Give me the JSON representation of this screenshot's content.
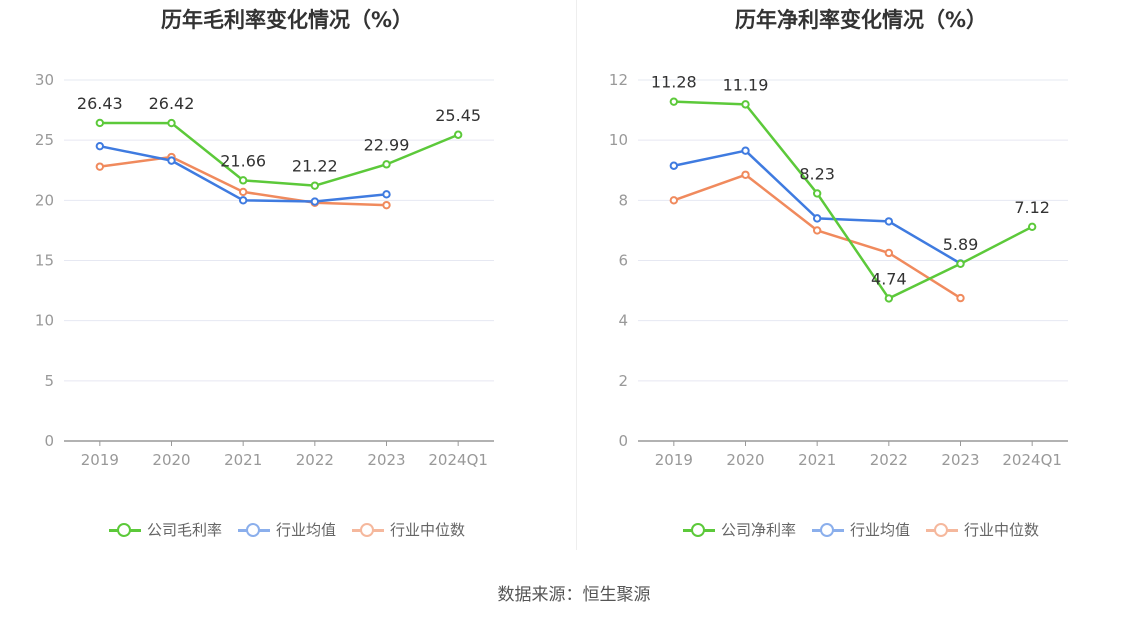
{
  "source_text": "数据来源：恒生聚源",
  "colors": {
    "company": "#5cc93a",
    "average": "#3f7be0",
    "median": "#f08a5d",
    "grid": "#e6e8f2",
    "axis": "#999999"
  },
  "legend": {
    "average": "行业均值",
    "median": "行业中位数"
  },
  "chart_data": [
    {
      "type": "line",
      "title": "历年毛利率变化情况（%）",
      "categories": [
        "2019",
        "2020",
        "2021",
        "2022",
        "2023",
        "2024Q1"
      ],
      "ylim": [
        0,
        30
      ],
      "yticks": [
        0,
        5,
        10,
        15,
        20,
        25,
        30
      ],
      "grid": true,
      "legend_position": "bottom",
      "series": [
        {
          "name": "公司毛利率",
          "key": "company",
          "values": [
            26.43,
            26.42,
            21.66,
            21.22,
            22.99,
            25.45
          ],
          "labels": [
            "26.43",
            "26.42",
            "21.66",
            "21.22",
            "22.99",
            "25.45"
          ]
        },
        {
          "name": "行业均值",
          "key": "average",
          "values": [
            24.5,
            23.3,
            20.0,
            19.9,
            20.5,
            null
          ]
        },
        {
          "name": "行业中位数",
          "key": "median",
          "values": [
            22.8,
            23.6,
            20.7,
            19.8,
            19.6,
            null
          ]
        }
      ]
    },
    {
      "type": "line",
      "title": "历年净利率变化情况（%）",
      "categories": [
        "2019",
        "2020",
        "2021",
        "2022",
        "2023",
        "2024Q1"
      ],
      "ylim": [
        0,
        12
      ],
      "yticks": [
        0,
        2,
        4,
        6,
        8,
        10,
        12
      ],
      "grid": true,
      "legend_position": "bottom",
      "series": [
        {
          "name": "公司净利率",
          "key": "company",
          "values": [
            11.28,
            11.19,
            8.23,
            4.74,
            5.89,
            7.12
          ],
          "labels": [
            "11.28",
            "11.19",
            "8.23",
            "4.74",
            "5.89",
            "7.12"
          ]
        },
        {
          "name": "行业均值",
          "key": "average",
          "values": [
            9.15,
            9.65,
            7.4,
            7.3,
            5.9,
            null
          ]
        },
        {
          "name": "行业中位数",
          "key": "median",
          "values": [
            8.0,
            8.85,
            7.0,
            6.25,
            4.75,
            null
          ]
        }
      ]
    }
  ]
}
